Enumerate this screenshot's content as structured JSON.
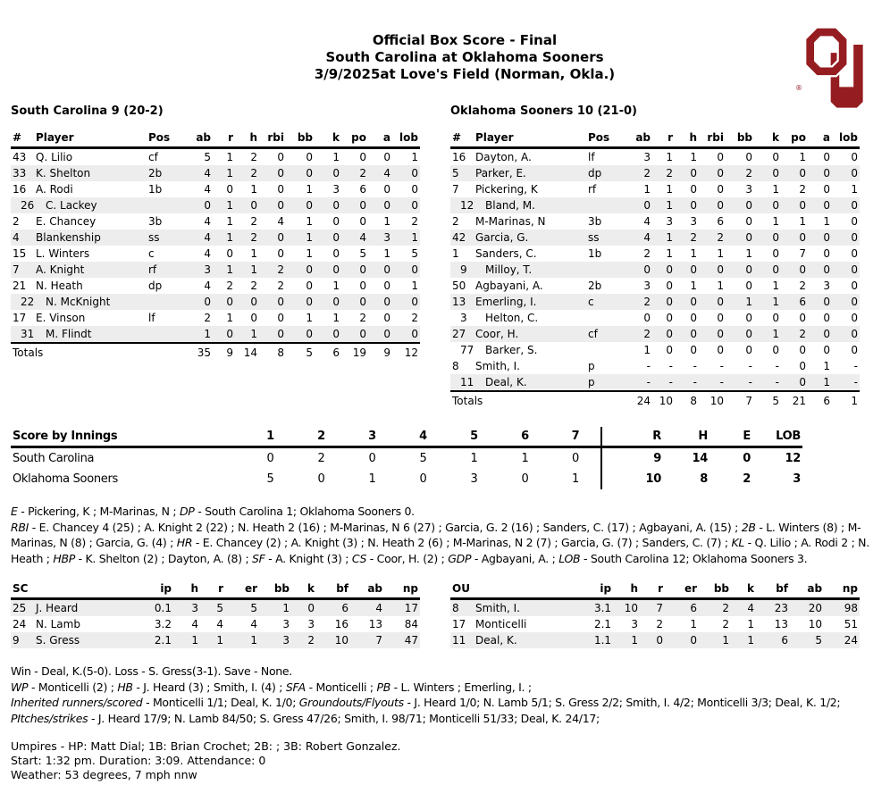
{
  "header": {
    "title": "Official Box Score - Final",
    "subtitle": "South Carolina at Oklahoma Sooners",
    "date_line": "3/9/2025at Love's Field (Norman, Okla.)"
  },
  "logo": {
    "color": "#951d21",
    "reg": "®"
  },
  "batting": {
    "columns": [
      "#",
      "Player",
      "Pos",
      "ab",
      "r",
      "h",
      "rbi",
      "bb",
      "k",
      "po",
      "a",
      "lob"
    ],
    "totals_label": "Totals",
    "teams": [
      {
        "title": "South Carolina 9 (20-2)",
        "rows": [
          {
            "num": "43",
            "name": "Q. Lilio",
            "pos": "cf",
            "sub": false,
            "shade": false,
            "stats": [
              "5",
              "1",
              "2",
              "0",
              "0",
              "1",
              "0",
              "0",
              "1"
            ]
          },
          {
            "num": "33",
            "name": "K. Shelton",
            "pos": "2b",
            "sub": false,
            "shade": true,
            "stats": [
              "4",
              "1",
              "2",
              "0",
              "0",
              "0",
              "2",
              "4",
              "0"
            ]
          },
          {
            "num": "16",
            "name": "A. Rodi",
            "pos": "1b",
            "sub": false,
            "shade": false,
            "stats": [
              "4",
              "0",
              "1",
              "0",
              "1",
              "3",
              "6",
              "0",
              "0"
            ]
          },
          {
            "num": "26",
            "name": "C. Lackey",
            "pos": "",
            "sub": true,
            "shade": true,
            "stats": [
              "0",
              "1",
              "0",
              "0",
              "0",
              "0",
              "0",
              "0",
              "0"
            ]
          },
          {
            "num": "2",
            "name": "E. Chancey",
            "pos": "3b",
            "sub": false,
            "shade": false,
            "stats": [
              "4",
              "1",
              "2",
              "4",
              "1",
              "0",
              "0",
              "1",
              "2"
            ]
          },
          {
            "num": "4",
            "name": "Blankenship",
            "pos": "ss",
            "sub": false,
            "shade": true,
            "stats": [
              "4",
              "1",
              "2",
              "0",
              "1",
              "0",
              "4",
              "3",
              "1"
            ]
          },
          {
            "num": "15",
            "name": "L. Winters",
            "pos": "c",
            "sub": false,
            "shade": false,
            "stats": [
              "4",
              "0",
              "1",
              "0",
              "1",
              "0",
              "5",
              "1",
              "5"
            ]
          },
          {
            "num": "7",
            "name": "A. Knight",
            "pos": "rf",
            "sub": false,
            "shade": true,
            "stats": [
              "3",
              "1",
              "1",
              "2",
              "0",
              "0",
              "0",
              "0",
              "0"
            ]
          },
          {
            "num": "21",
            "name": "N. Heath",
            "pos": "dp",
            "sub": false,
            "shade": false,
            "stats": [
              "4",
              "2",
              "2",
              "2",
              "0",
              "1",
              "0",
              "0",
              "1"
            ]
          },
          {
            "num": "22",
            "name": "N. McKnight",
            "pos": "",
            "sub": true,
            "shade": true,
            "stats": [
              "0",
              "0",
              "0",
              "0",
              "0",
              "0",
              "0",
              "0",
              "0"
            ]
          },
          {
            "num": "17",
            "name": "E. Vinson",
            "pos": "lf",
            "sub": false,
            "shade": false,
            "stats": [
              "2",
              "1",
              "0",
              "0",
              "1",
              "1",
              "2",
              "0",
              "2"
            ]
          },
          {
            "num": "31",
            "name": "M. Flindt",
            "pos": "",
            "sub": true,
            "shade": true,
            "stats": [
              "1",
              "0",
              "1",
              "0",
              "0",
              "0",
              "0",
              "0",
              "0"
            ]
          }
        ],
        "totals": [
          "35",
          "9",
          "14",
          "8",
          "5",
          "6",
          "19",
          "9",
          "12"
        ]
      },
      {
        "title": "Oklahoma Sooners 10 (21-0)",
        "rows": [
          {
            "num": "16",
            "name": "Dayton, A.",
            "pos": "lf",
            "sub": false,
            "shade": false,
            "stats": [
              "3",
              "1",
              "1",
              "0",
              "0",
              "0",
              "1",
              "0",
              "0"
            ]
          },
          {
            "num": "5",
            "name": "Parker, E.",
            "pos": "dp",
            "sub": false,
            "shade": true,
            "stats": [
              "2",
              "2",
              "0",
              "0",
              "2",
              "0",
              "0",
              "0",
              "0"
            ]
          },
          {
            "num": "7",
            "name": "Pickering, K",
            "pos": "rf",
            "sub": false,
            "shade": false,
            "stats": [
              "1",
              "1",
              "0",
              "0",
              "3",
              "1",
              "2",
              "0",
              "1"
            ]
          },
          {
            "num": "12",
            "name": "Bland, M.",
            "pos": "",
            "sub": true,
            "shade": true,
            "stats": [
              "0",
              "1",
              "0",
              "0",
              "0",
              "0",
              "0",
              "0",
              "0"
            ]
          },
          {
            "num": "2",
            "name": "M-Marinas, N",
            "pos": "3b",
            "sub": false,
            "shade": false,
            "stats": [
              "4",
              "3",
              "3",
              "6",
              "0",
              "1",
              "1",
              "1",
              "0"
            ]
          },
          {
            "num": "42",
            "name": "Garcia, G.",
            "pos": "ss",
            "sub": false,
            "shade": true,
            "stats": [
              "4",
              "1",
              "2",
              "2",
              "0",
              "0",
              "0",
              "0",
              "0"
            ]
          },
          {
            "num": "1",
            "name": "Sanders, C.",
            "pos": "1b",
            "sub": false,
            "shade": false,
            "stats": [
              "2",
              "1",
              "1",
              "1",
              "1",
              "0",
              "7",
              "0",
              "0"
            ]
          },
          {
            "num": "9",
            "name": "Milloy, T.",
            "pos": "",
            "sub": true,
            "shade": true,
            "stats": [
              "0",
              "0",
              "0",
              "0",
              "0",
              "0",
              "0",
              "0",
              "0"
            ]
          },
          {
            "num": "50",
            "name": "Agbayani, A.",
            "pos": "2b",
            "sub": false,
            "shade": false,
            "stats": [
              "3",
              "0",
              "1",
              "1",
              "0",
              "1",
              "2",
              "3",
              "0"
            ]
          },
          {
            "num": "13",
            "name": "Emerling, I.",
            "pos": "c",
            "sub": false,
            "shade": true,
            "stats": [
              "2",
              "0",
              "0",
              "0",
              "1",
              "1",
              "6",
              "0",
              "0"
            ]
          },
          {
            "num": "3",
            "name": "Helton, C.",
            "pos": "",
            "sub": true,
            "shade": false,
            "stats": [
              "0",
              "0",
              "0",
              "0",
              "0",
              "0",
              "0",
              "0",
              "0"
            ]
          },
          {
            "num": "27",
            "name": "Coor, H.",
            "pos": "cf",
            "sub": false,
            "shade": true,
            "stats": [
              "2",
              "0",
              "0",
              "0",
              "0",
              "1",
              "2",
              "0",
              "0"
            ]
          },
          {
            "num": "77",
            "name": "Barker, S.",
            "pos": "",
            "sub": true,
            "shade": false,
            "stats": [
              "1",
              "0",
              "0",
              "0",
              "0",
              "0",
              "0",
              "0",
              "0"
            ]
          },
          {
            "num": "8",
            "name": "Smith, I.",
            "pos": "p",
            "sub": false,
            "shade": false,
            "stats": [
              "-",
              "-",
              "-",
              "-",
              "-",
              "-",
              "0",
              "1",
              "-"
            ]
          },
          {
            "num": "11",
            "name": "Deal, K.",
            "pos": "p",
            "sub": true,
            "shade": true,
            "stats": [
              "-",
              "-",
              "-",
              "-",
              "-",
              "-",
              "0",
              "1",
              "-"
            ]
          }
        ],
        "totals": [
          "24",
          "10",
          "8",
          "10",
          "7",
          "5",
          "21",
          "6",
          "1"
        ]
      }
    ]
  },
  "innings": {
    "title": "Score by Innings",
    "inning_headers": [
      "1",
      "2",
      "3",
      "4",
      "5",
      "6",
      "7"
    ],
    "summary_headers": [
      "R",
      "H",
      "E",
      "LOB"
    ],
    "rows": [
      {
        "team": "South Carolina",
        "innings": [
          "0",
          "2",
          "0",
          "5",
          "1",
          "1",
          "0"
        ],
        "summary": [
          "9",
          "14",
          "0",
          "12"
        ]
      },
      {
        "team": "Oklahoma Sooners",
        "innings": [
          "5",
          "0",
          "1",
          "0",
          "3",
          "0",
          "1"
        ],
        "summary": [
          "10",
          "8",
          "2",
          "3"
        ]
      }
    ]
  },
  "notes_line1": [
    {
      "i": "E"
    },
    {
      "t": " - Pickering, K ; M-Marinas, N ; "
    },
    {
      "i": "DP"
    },
    {
      "t": " - South Carolina 1; Oklahoma Sooners 0."
    }
  ],
  "notes_line2": [
    {
      "i": "RBI"
    },
    {
      "t": " - E. Chancey 4 (25) ; A. Knight 2 (22) ; N. Heath 2 (16) ; M-Marinas, N 6 (27) ; Garcia, G. 2 (16) ; Sanders, C. (17) ; Agbayani, A. (15) ; "
    },
    {
      "i": "2B"
    },
    {
      "t": " - L. Winters (8) ; M-Marinas, N (8) ; Garcia, G. (4) ; "
    },
    {
      "i": "HR"
    },
    {
      "t": " - E. Chancey (2) ; A. Knight (3) ; N. Heath 2 (6) ; M-Marinas, N 2 (7) ; Garcia, G. (7) ; Sanders, C. (7) ; "
    },
    {
      "i": "KL"
    },
    {
      "t": " - Q. Lilio ; A. Rodi 2 ; N. Heath ; "
    },
    {
      "i": "HBP"
    },
    {
      "t": " - K. Shelton (2) ; Dayton, A. (8) ; "
    },
    {
      "i": "SF"
    },
    {
      "t": " - A. Knight (3) ; "
    },
    {
      "i": "CS"
    },
    {
      "t": " - Coor, H. (2) ; "
    },
    {
      "i": "GDP"
    },
    {
      "t": " - Agbayani, A. ; "
    },
    {
      "i": "LOB"
    },
    {
      "t": " - South Carolina 12; Oklahoma Sooners 3."
    }
  ],
  "pitching": {
    "columns": [
      "ip",
      "h",
      "r",
      "er",
      "bb",
      "k",
      "bf",
      "ab",
      "np"
    ],
    "teams": [
      {
        "title": "SC",
        "rows": [
          {
            "num": "25",
            "name": "J. Heard",
            "shade": true,
            "stats": [
              "0.1",
              "3",
              "5",
              "5",
              "1",
              "0",
              "6",
              "4",
              "17"
            ]
          },
          {
            "num": "24",
            "name": "N. Lamb",
            "shade": false,
            "stats": [
              "3.2",
              "4",
              "4",
              "4",
              "3",
              "3",
              "16",
              "13",
              "84"
            ]
          },
          {
            "num": "9",
            "name": "S. Gress",
            "shade": true,
            "stats": [
              "2.1",
              "1",
              "1",
              "1",
              "3",
              "2",
              "10",
              "7",
              "47"
            ]
          }
        ]
      },
      {
        "title": "OU",
        "rows": [
          {
            "num": "8",
            "name": "Smith, I.",
            "shade": true,
            "stats": [
              "3.1",
              "10",
              "7",
              "6",
              "2",
              "4",
              "23",
              "20",
              "98"
            ]
          },
          {
            "num": "17",
            "name": "Monticelli",
            "shade": false,
            "stats": [
              "2.1",
              "3",
              "2",
              "1",
              "2",
              "1",
              "13",
              "10",
              "51"
            ]
          },
          {
            "num": "11",
            "name": "Deal, K.",
            "shade": true,
            "stats": [
              "1.1",
              "1",
              "0",
              "0",
              "1",
              "1",
              "6",
              "5",
              "24"
            ]
          }
        ]
      }
    ]
  },
  "decisions": "Win - Deal, K.(5-0). Loss - S. Gress(3-1). Save - None.",
  "wp_line": [
    {
      "i": "WP"
    },
    {
      "t": " - Monticelli (2) ; "
    },
    {
      "i": "HB"
    },
    {
      "t": " - J. Heard (3) ; Smith, I. (4) ; "
    },
    {
      "i": "SFA"
    },
    {
      "t": " - Monticelli ; "
    },
    {
      "i": "PB"
    },
    {
      "t": " - L. Winters ; Emerling, I. ;"
    }
  ],
  "inherited_line": [
    {
      "i": "Inherited runners/scored"
    },
    {
      "t": " - Monticelli 1/1; Deal, K. 1/0; "
    },
    {
      "i": "Groundouts/Flyouts"
    },
    {
      "t": " - J. Heard 1/0; N. Lamb 5/1; S. Gress 2/2; Smith, I. 4/2; Monticelli 3/3; Deal, K. 1/2;"
    }
  ],
  "pitches_line": [
    {
      "i": "PItches/strikes"
    },
    {
      "t": " - J. Heard 17/9; N. Lamb 84/50; S. Gress 47/26; Smith, I. 98/71; Monticelli 51/33; Deal, K. 24/17;"
    }
  ],
  "footer": {
    "umpires": "Umpires - HP: Matt Dial; 1B: Brian Crochet; 2B: ; 3B: Robert Gonzalez.",
    "start": "Start: 1:32 pm. Duration: 3:09. Attendance: 0",
    "weather": "Weather: 53 degrees, 7 mph nnw"
  }
}
